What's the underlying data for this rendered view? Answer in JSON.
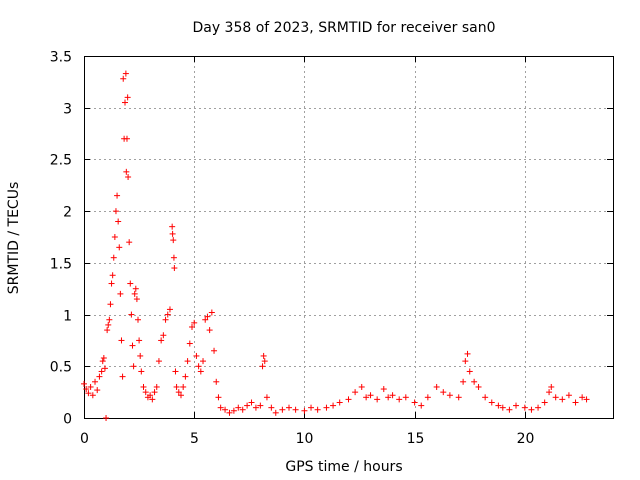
{
  "chart_data": {
    "type": "scatter",
    "title": "Day 358 of 2023, SRMTID for receiver san0",
    "xlabel": "GPS time / hours",
    "ylabel": "SRMTID / TECUs",
    "xlim": [
      0,
      24
    ],
    "ylim": [
      0,
      3.5
    ],
    "xticks": [
      0,
      5,
      10,
      15,
      20
    ],
    "xtick_labels": [
      "0",
      "5",
      "10",
      "15",
      "20"
    ],
    "yticks": [
      0,
      0.5,
      1,
      1.5,
      2,
      2.5,
      3,
      3.5
    ],
    "ytick_labels": [
      "0",
      "0.5",
      "1",
      "1.5",
      "2",
      "2.5",
      "3",
      "3.5"
    ],
    "grid": true,
    "marker": "+",
    "color": "#ff0000",
    "series": [
      {
        "name": "san0",
        "points": [
          [
            0.0,
            0.33
          ],
          [
            0.1,
            0.28
          ],
          [
            0.2,
            0.24
          ],
          [
            0.3,
            0.3
          ],
          [
            0.4,
            0.22
          ],
          [
            0.5,
            0.35
          ],
          [
            0.6,
            0.27
          ],
          [
            0.7,
            0.4
          ],
          [
            0.8,
            0.45
          ],
          [
            0.85,
            0.55
          ],
          [
            0.9,
            0.58
          ],
          [
            0.95,
            0.48
          ],
          [
            1.0,
            0.0
          ],
          [
            1.05,
            0.85
          ],
          [
            1.1,
            0.9
          ],
          [
            1.15,
            0.95
          ],
          [
            1.2,
            1.1
          ],
          [
            1.25,
            1.3
          ],
          [
            1.3,
            1.38
          ],
          [
            1.35,
            1.55
          ],
          [
            1.4,
            1.75
          ],
          [
            1.45,
            2.0
          ],
          [
            1.5,
            2.15
          ],
          [
            1.55,
            1.9
          ],
          [
            1.6,
            1.65
          ],
          [
            1.65,
            1.2
          ],
          [
            1.7,
            0.75
          ],
          [
            1.75,
            0.4
          ],
          [
            1.78,
            3.28
          ],
          [
            1.82,
            2.7
          ],
          [
            1.86,
            3.05
          ],
          [
            1.9,
            3.33
          ],
          [
            1.92,
            2.38
          ],
          [
            1.95,
            2.7
          ],
          [
            1.98,
            3.1
          ],
          [
            2.0,
            2.33
          ],
          [
            2.05,
            1.7
          ],
          [
            2.1,
            1.3
          ],
          [
            2.15,
            1.0
          ],
          [
            2.2,
            0.7
          ],
          [
            2.25,
            0.5
          ],
          [
            2.3,
            1.2
          ],
          [
            2.35,
            1.25
          ],
          [
            2.4,
            1.15
          ],
          [
            2.45,
            0.95
          ],
          [
            2.5,
            0.75
          ],
          [
            2.55,
            0.6
          ],
          [
            2.6,
            0.45
          ],
          [
            2.7,
            0.3
          ],
          [
            2.8,
            0.25
          ],
          [
            2.9,
            0.2
          ],
          [
            3.0,
            0.22
          ],
          [
            3.1,
            0.18
          ],
          [
            3.2,
            0.25
          ],
          [
            3.3,
            0.3
          ],
          [
            3.4,
            0.55
          ],
          [
            3.5,
            0.75
          ],
          [
            3.6,
            0.8
          ],
          [
            3.7,
            0.95
          ],
          [
            3.8,
            1.0
          ],
          [
            3.9,
            1.05
          ],
          [
            4.0,
            1.85
          ],
          [
            4.02,
            1.78
          ],
          [
            4.05,
            1.72
          ],
          [
            4.08,
            1.55
          ],
          [
            4.1,
            1.45
          ],
          [
            4.15,
            0.45
          ],
          [
            4.2,
            0.3
          ],
          [
            4.3,
            0.25
          ],
          [
            4.4,
            0.22
          ],
          [
            4.5,
            0.3
          ],
          [
            4.6,
            0.4
          ],
          [
            4.7,
            0.55
          ],
          [
            4.8,
            0.72
          ],
          [
            4.9,
            0.88
          ],
          [
            5.0,
            0.92
          ],
          [
            5.1,
            0.6
          ],
          [
            5.2,
            0.5
          ],
          [
            5.3,
            0.45
          ],
          [
            5.4,
            0.55
          ],
          [
            5.5,
            0.95
          ],
          [
            5.6,
            0.98
          ],
          [
            5.7,
            0.85
          ],
          [
            5.8,
            1.02
          ],
          [
            5.9,
            0.65
          ],
          [
            6.0,
            0.35
          ],
          [
            6.1,
            0.2
          ],
          [
            6.2,
            0.1
          ],
          [
            6.4,
            0.08
          ],
          [
            6.6,
            0.05
          ],
          [
            6.8,
            0.07
          ],
          [
            7.0,
            0.1
          ],
          [
            7.2,
            0.08
          ],
          [
            7.4,
            0.12
          ],
          [
            7.6,
            0.15
          ],
          [
            7.8,
            0.1
          ],
          [
            8.0,
            0.12
          ],
          [
            8.1,
            0.5
          ],
          [
            8.15,
            0.6
          ],
          [
            8.2,
            0.55
          ],
          [
            8.3,
            0.2
          ],
          [
            8.5,
            0.1
          ],
          [
            8.7,
            0.05
          ],
          [
            9.0,
            0.08
          ],
          [
            9.3,
            0.1
          ],
          [
            9.6,
            0.08
          ],
          [
            10.0,
            0.07
          ],
          [
            10.3,
            0.1
          ],
          [
            10.6,
            0.08
          ],
          [
            11.0,
            0.1
          ],
          [
            11.3,
            0.12
          ],
          [
            11.6,
            0.15
          ],
          [
            12.0,
            0.18
          ],
          [
            12.3,
            0.25
          ],
          [
            12.6,
            0.3
          ],
          [
            12.8,
            0.2
          ],
          [
            13.0,
            0.22
          ],
          [
            13.3,
            0.18
          ],
          [
            13.6,
            0.28
          ],
          [
            13.8,
            0.2
          ],
          [
            14.0,
            0.22
          ],
          [
            14.3,
            0.18
          ],
          [
            14.6,
            0.2
          ],
          [
            15.0,
            0.15
          ],
          [
            15.3,
            0.12
          ],
          [
            15.6,
            0.2
          ],
          [
            16.0,
            0.3
          ],
          [
            16.3,
            0.25
          ],
          [
            16.6,
            0.22
          ],
          [
            17.0,
            0.2
          ],
          [
            17.2,
            0.35
          ],
          [
            17.3,
            0.55
          ],
          [
            17.4,
            0.62
          ],
          [
            17.5,
            0.45
          ],
          [
            17.7,
            0.35
          ],
          [
            17.9,
            0.3
          ],
          [
            18.2,
            0.2
          ],
          [
            18.5,
            0.15
          ],
          [
            18.8,
            0.12
          ],
          [
            19.0,
            0.1
          ],
          [
            19.3,
            0.08
          ],
          [
            19.6,
            0.12
          ],
          [
            20.0,
            0.1
          ],
          [
            20.3,
            0.08
          ],
          [
            20.6,
            0.1
          ],
          [
            20.9,
            0.15
          ],
          [
            21.1,
            0.25
          ],
          [
            21.2,
            0.3
          ],
          [
            21.4,
            0.2
          ],
          [
            21.7,
            0.18
          ],
          [
            22.0,
            0.22
          ],
          [
            22.3,
            0.15
          ],
          [
            22.6,
            0.2
          ],
          [
            22.8,
            0.18
          ]
        ]
      }
    ]
  }
}
